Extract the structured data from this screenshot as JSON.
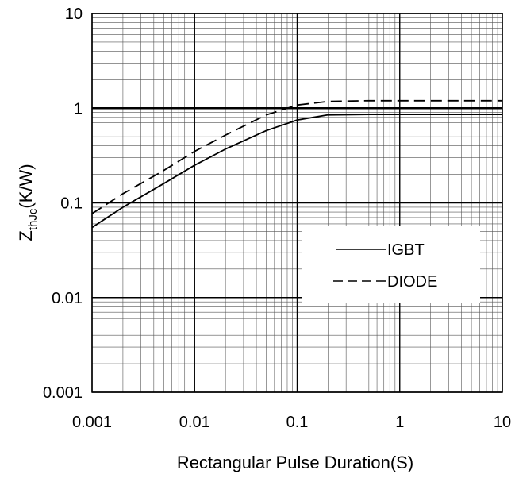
{
  "chart_data": {
    "type": "line",
    "title": "",
    "xlabel": "Rectangular Pulse Duration(S)",
    "ylabel": {
      "main": "Z",
      "subscript": "thJc",
      "units": "(K/W)"
    },
    "xscale": "log",
    "yscale": "log",
    "xlim": [
      0.001,
      10
    ],
    "ylim": [
      0.001,
      10
    ],
    "xticks": [
      "0.001",
      "0.01",
      "0.1",
      "1",
      "10"
    ],
    "yticks": [
      "0.001",
      "0.01",
      "0.1",
      "1",
      "10"
    ],
    "grid": true,
    "legend_position": "middle-right",
    "series": [
      {
        "name": "IGBT",
        "line_style": "solid",
        "color": "#000000",
        "x": [
          0.001,
          0.002,
          0.005,
          0.01,
          0.02,
          0.05,
          0.1,
          0.2,
          0.5,
          1,
          2,
          5,
          10
        ],
        "y": [
          0.055,
          0.09,
          0.16,
          0.25,
          0.37,
          0.58,
          0.75,
          0.85,
          0.86,
          0.86,
          0.86,
          0.86,
          0.86
        ]
      },
      {
        "name": "DIODE",
        "line_style": "dashed",
        "color": "#000000",
        "x": [
          0.001,
          0.002,
          0.005,
          0.01,
          0.02,
          0.05,
          0.1,
          0.2,
          0.5,
          1,
          2,
          5,
          10
        ],
        "y": [
          0.077,
          0.125,
          0.22,
          0.35,
          0.52,
          0.85,
          1.08,
          1.18,
          1.2,
          1.2,
          1.2,
          1.2,
          1.2
        ]
      }
    ]
  }
}
